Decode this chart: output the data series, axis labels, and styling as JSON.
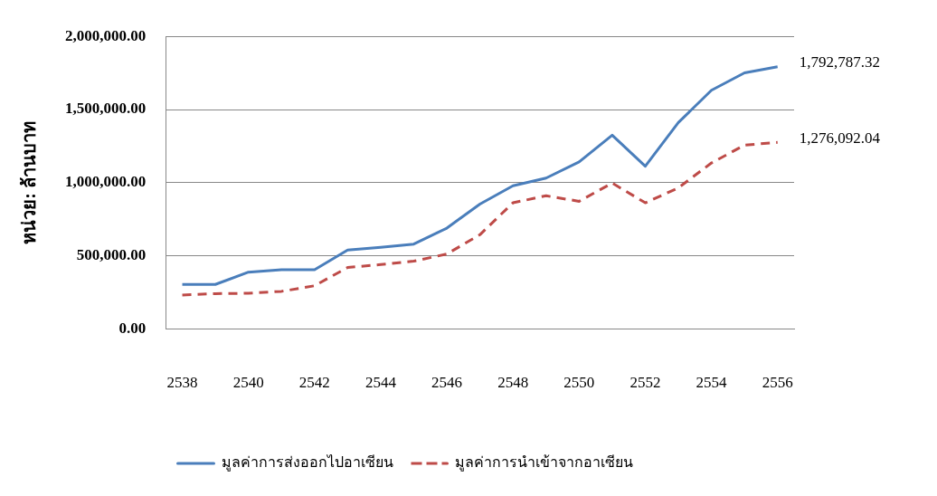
{
  "chart_data": {
    "type": "line",
    "ylabel": "หน่วย: ล้านบาท",
    "categories": [
      "2538",
      null,
      "2540",
      null,
      "2542",
      null,
      "2544",
      null,
      "2546",
      null,
      "2548",
      null,
      "2550",
      null,
      "2552",
      null,
      "2554",
      null,
      "2556"
    ],
    "series": [
      {
        "name": "มูลค่าการส่งออกไปอาเซียน",
        "color": "#4a7ebb",
        "line_style": "solid",
        "values": [
          305000,
          305000,
          389000,
          406000,
          406000,
          540000,
          559000,
          581000,
          690000,
          854000,
          979000,
          1032000,
          1142000,
          1325000,
          1113000,
          1411000,
          1632000,
          1751000,
          1792787.32
        ]
      },
      {
        "name": "มูลค่าการนำเข้าจากอาเซียน",
        "color": "#be4b48",
        "line_style": "dashed",
        "values": [
          233000,
          242000,
          245000,
          258000,
          296000,
          421000,
          441000,
          464000,
          513000,
          645000,
          863000,
          911000,
          873000,
          998000,
          863000,
          965000,
          1135000,
          1257000,
          1276092.04
        ]
      }
    ],
    "ylim": [
      0,
      2000000
    ],
    "yticks": [
      {
        "value": 0,
        "label": "0.00"
      },
      {
        "value": 500000,
        "label": "500,000.00"
      },
      {
        "value": 1000000,
        "label": "1,000,000.00"
      },
      {
        "value": 1500000,
        "label": "1,500,000.00"
      },
      {
        "value": 2000000,
        "label": "2,000,000.00"
      }
    ],
    "annotations": [
      {
        "text": "1,792,787.32",
        "x": "2556",
        "y": 1792787.32
      },
      {
        "text": "1,276,092.04",
        "x": "2556",
        "y": 1276092.04
      }
    ],
    "grid": "y",
    "legend": "bottom",
    "marker": "none"
  }
}
